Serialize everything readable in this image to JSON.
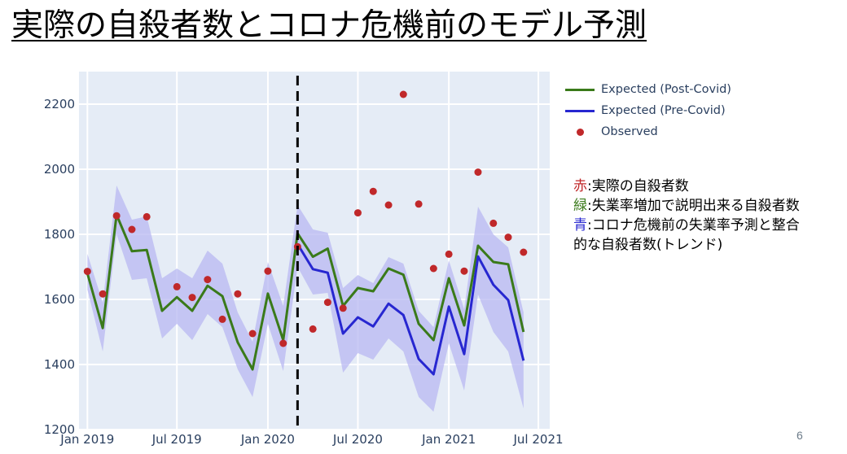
{
  "slide": {
    "title": "実際の自殺者数とコロナ危機前のモデル予測",
    "page_number": "6"
  },
  "legend": [
    {
      "label": "Expected (Post-Covid)",
      "color": "#3a7a1a",
      "kind": "line"
    },
    {
      "label": "Expected (Pre-Covid)",
      "color": "#2727d0",
      "kind": "line"
    },
    {
      "label": "Observed",
      "color": "#c0282a",
      "kind": "marker"
    }
  ],
  "notes": [
    {
      "key": "赤",
      "key_color": "#c0282a",
      "text": ":実際の自殺者数"
    },
    {
      "key": "緑",
      "key_color": "#3a7a1a",
      "text": ":失業率増加で説明出来る自殺者数"
    },
    {
      "key": "青",
      "key_color": "#2727d0",
      "text": ":コロナ危機前の失業率予測と整合"
    },
    {
      "key": "",
      "key_color": "#000000",
      "text": "的な自殺者数(トレンド)"
    }
  ],
  "chart_data": {
    "type": "line",
    "x_ticks": [
      "Jan 2019",
      "Jul 2019",
      "Jan 2020",
      "Jul 2020",
      "Jan 2021",
      "Jul 2021"
    ],
    "y_ticks": [
      1200,
      1400,
      1600,
      1800,
      2000,
      2200
    ],
    "ylim": [
      1200,
      2300
    ],
    "x_range": [
      "2018-12-15",
      "2021-07-24"
    ],
    "grid": true,
    "covid_marker_date": "2020-03-01",
    "series": [
      {
        "name": "Expected (Post-Covid)",
        "color": "#3a7a1a",
        "x": [
          "2019-01",
          "2019-02",
          "2019-03",
          "2019-04",
          "2019-05",
          "2019-06",
          "2019-07",
          "2019-08",
          "2019-09",
          "2019-10",
          "2019-11",
          "2019-12",
          "2020-01",
          "2020-02",
          "2020-03",
          "2020-04",
          "2020-05",
          "2020-06",
          "2020-07",
          "2020-08",
          "2020-09",
          "2020-10",
          "2020-11",
          "2020-12",
          "2021-01",
          "2021-02",
          "2021-03",
          "2021-04",
          "2021-05",
          "2021-06"
        ],
        "values": [
          1680,
          1512,
          1860,
          1748,
          1752,
          1565,
          1607,
          1565,
          1642,
          1610,
          1468,
          1385,
          1618,
          1475,
          1803,
          1731,
          1756,
          1580,
          1635,
          1625,
          1695,
          1676,
          1525,
          1475,
          1665,
          1520,
          1765,
          1715,
          1708,
          1500
        ]
      },
      {
        "name": "Expected (Pre-Covid)",
        "color": "#2727d0",
        "x": [
          "2020-03",
          "2020-04",
          "2020-05",
          "2020-06",
          "2020-07",
          "2020-08",
          "2020-09",
          "2020-10",
          "2020-11",
          "2020-12",
          "2021-01",
          "2021-02",
          "2021-03",
          "2021-04",
          "2021-05",
          "2021-06"
        ],
        "values": [
          1770,
          1693,
          1682,
          1495,
          1545,
          1517,
          1587,
          1552,
          1417,
          1370,
          1578,
          1432,
          1732,
          1645,
          1598,
          1412
        ]
      },
      {
        "name": "Observed",
        "color": "#c0282a",
        "x": [
          "2019-01",
          "2019-02",
          "2019-03",
          "2019-04",
          "2019-05",
          "2019-07",
          "2019-08",
          "2019-09",
          "2019-10",
          "2019-11",
          "2019-12",
          "2020-01",
          "2020-02",
          "2020-03",
          "2020-04",
          "2020-05",
          "2020-06",
          "2020-07",
          "2020-08",
          "2020-09",
          "2020-10",
          "2020-11",
          "2020-12",
          "2021-01",
          "2021-02",
          "2021-03",
          "2021-04",
          "2021-05",
          "2021-06"
        ],
        "values": [
          1686,
          1617,
          1857,
          1815,
          1854,
          1639,
          1606,
          1661,
          1539,
          1617,
          1495,
          1687,
          1465,
          1762,
          1509,
          1591,
          1573,
          1866,
          1932,
          1890,
          2230,
          1893,
          1695,
          1739,
          1687,
          1991,
          1834,
          1791,
          1745
        ]
      }
    ],
    "band": {
      "color": "#b8b8f2",
      "x": [
        "2019-01",
        "2019-02",
        "2019-03",
        "2019-04",
        "2019-05",
        "2019-06",
        "2019-07",
        "2019-08",
        "2019-09",
        "2019-10",
        "2019-11",
        "2019-12",
        "2020-01",
        "2020-02",
        "2020-03",
        "2020-04",
        "2020-05",
        "2020-06",
        "2020-07",
        "2020-08",
        "2020-09",
        "2020-10",
        "2020-11",
        "2020-12",
        "2021-01",
        "2021-02",
        "2021-03",
        "2021-04",
        "2021-05",
        "2021-06"
      ],
      "lower": [
        1630,
        1440,
        1800,
        1660,
        1665,
        1480,
        1525,
        1475,
        1555,
        1515,
        1385,
        1300,
        1525,
        1380,
        1700,
        1615,
        1620,
        1375,
        1435,
        1415,
        1480,
        1440,
        1300,
        1255,
        1465,
        1320,
        1615,
        1500,
        1440,
        1265
      ],
      "upper": [
        1740,
        1590,
        1950,
        1845,
        1855,
        1665,
        1695,
        1665,
        1750,
        1710,
        1560,
        1470,
        1715,
        1580,
        1890,
        1815,
        1805,
        1635,
        1675,
        1650,
        1730,
        1710,
        1565,
        1515,
        1720,
        1570,
        1885,
        1800,
        1760,
        1560
      ]
    }
  }
}
